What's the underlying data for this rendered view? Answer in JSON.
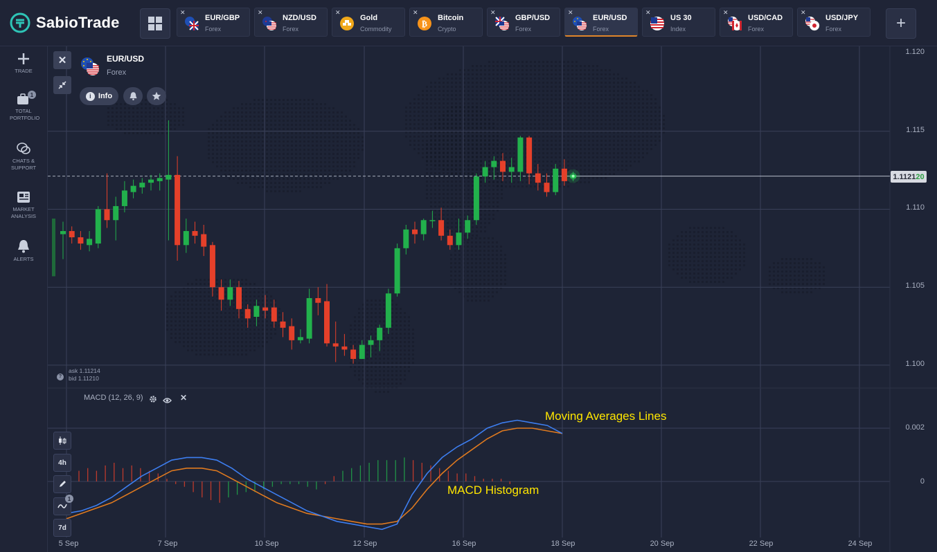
{
  "app": {
    "brand": "SabioTrade",
    "accent": "#2ec4b6"
  },
  "tabs": [
    {
      "name": "EUR/GBP",
      "category": "Forex",
      "flag": "eu-uk-flag-icon"
    },
    {
      "name": "NZD/USD",
      "category": "Forex",
      "flag": "nz-us-flag-icon"
    },
    {
      "name": "Gold",
      "category": "Commodity",
      "flag": "gold-icon"
    },
    {
      "name": "Bitcoin",
      "category": "Crypto",
      "flag": "bitcoin-icon"
    },
    {
      "name": "GBP/USD",
      "category": "Forex",
      "flag": "uk-us-flag-icon"
    },
    {
      "name": "EUR/USD",
      "category": "Forex",
      "flag": "eu-us-flag-icon",
      "active": true
    },
    {
      "name": "US 30",
      "category": "Index",
      "flag": "us-flag-icon"
    },
    {
      "name": "USD/CAD",
      "category": "Forex",
      "flag": "us-ca-flag-icon"
    },
    {
      "name": "USD/JPY",
      "category": "Forex",
      "flag": "us-jp-flag-icon"
    }
  ],
  "sidebar": {
    "items": [
      {
        "label": "TRADE",
        "icon": "plus-icon"
      },
      {
        "label": "TOTAL PORTFOLIO",
        "icon": "briefcase-icon",
        "badge": "1"
      },
      {
        "label": "CHATS & SUPPORT",
        "icon": "chat-icon"
      },
      {
        "label": "MARKET ANALYSIS",
        "icon": "newspaper-icon"
      },
      {
        "label": "ALERTS",
        "icon": "bell-icon"
      }
    ]
  },
  "symbol": {
    "name": "EUR/USD",
    "category": "Forex",
    "info_label": "Info"
  },
  "quote": {
    "ask": "ask 1.11214",
    "bid": "bid 1.11210",
    "price_main": "1.1121",
    "price_tail": "20"
  },
  "indicator": {
    "label": "MACD (12, 26, 9)"
  },
  "tools": {
    "period": "4h",
    "range": "7d",
    "indicator_badge": "1"
  },
  "annotations": {
    "ma": "Moving Averages Lines",
    "hist": "MACD Histogram"
  },
  "colors": {
    "up": "#22b14c",
    "down": "#e5402a",
    "macd": "#3d7ef0",
    "signal": "#e07a1f"
  },
  "chart_data": {
    "type": "candlestick",
    "price_ticks": [
      "1.120",
      "1.115",
      "1.110",
      "1.105",
      "1.100"
    ],
    "macd_ticks": [
      "0.002",
      "0"
    ],
    "x_ticks": [
      "5 Sep",
      "7 Sep",
      "10 Sep",
      "12 Sep",
      "16 Sep",
      "18 Sep",
      "20 Sep",
      "22 Sep",
      "24 Sep"
    ],
    "current_price": 1.11212,
    "candles": [
      [
        1.1084,
        1.1086,
        1.1092,
        1.1068
      ],
      [
        1.1086,
        1.1082,
        1.1089,
        1.1078
      ],
      [
        1.1082,
        1.1078,
        1.1086,
        1.1074
      ],
      [
        1.1077,
        1.1081,
        1.1086,
        1.1073
      ],
      [
        1.1078,
        1.11,
        1.1102,
        1.1075
      ],
      [
        1.11,
        1.1093,
        1.1123,
        1.1088
      ],
      [
        1.1093,
        1.1102,
        1.1108,
        1.108
      ],
      [
        1.1102,
        1.1112,
        1.1118,
        1.1098
      ],
      [
        1.1111,
        1.1115,
        1.1119,
        1.1107
      ],
      [
        1.1114,
        1.1117,
        1.112,
        1.111
      ],
      [
        1.1117,
        1.1119,
        1.1122,
        1.1112
      ],
      [
        1.1118,
        1.112,
        1.1123,
        1.1112
      ],
      [
        1.1119,
        1.1122,
        1.1157,
        1.108
      ],
      [
        1.1122,
        1.1077,
        1.1134,
        1.1067
      ],
      [
        1.1077,
        1.1086,
        1.1094,
        1.1072
      ],
      [
        1.1086,
        1.1083,
        1.1092,
        1.1078
      ],
      [
        1.1084,
        1.1076,
        1.109,
        1.107
      ],
      [
        1.1077,
        1.105,
        1.1079,
        1.1044
      ],
      [
        1.105,
        1.1042,
        1.1055,
        1.1035
      ],
      [
        1.1042,
        1.105,
        1.1055,
        1.1038
      ],
      [
        1.105,
        1.1036,
        1.1054,
        1.103
      ],
      [
        1.1036,
        1.103,
        1.1039,
        1.1024
      ],
      [
        1.1031,
        1.1038,
        1.1042,
        1.1025
      ],
      [
        1.1037,
        1.1035,
        1.1045,
        1.103
      ],
      [
        1.1037,
        1.1028,
        1.1042,
        1.1024
      ],
      [
        1.1028,
        1.1024,
        1.1034,
        1.1018
      ],
      [
        1.1025,
        1.1016,
        1.103,
        1.101
      ],
      [
        1.1016,
        1.1018,
        1.1023,
        1.1014
      ],
      [
        1.1017,
        1.1043,
        1.1049,
        1.1014
      ],
      [
        1.1043,
        1.104,
        1.105,
        1.1032
      ],
      [
        1.1041,
        1.1014,
        1.1052,
        1.1012
      ],
      [
        1.1014,
        1.1012,
        1.1028,
        1.1002
      ],
      [
        1.1012,
        1.101,
        1.102,
        1.1006
      ],
      [
        1.101,
        1.1004,
        1.1013,
        1.1001
      ],
      [
        1.1004,
        1.1013,
        1.1016,
        1.1004
      ],
      [
        1.1013,
        1.1016,
        1.1019,
        1.1005
      ],
      [
        1.1016,
        1.1024,
        1.1026,
        1.1009
      ],
      [
        1.1024,
        1.1046,
        1.1049,
        1.102
      ],
      [
        1.1046,
        1.1075,
        1.1078,
        1.1044
      ],
      [
        1.1075,
        1.1087,
        1.109,
        1.1071
      ],
      [
        1.1087,
        1.1084,
        1.1092,
        1.1078
      ],
      [
        1.1084,
        1.1093,
        1.1094,
        1.108
      ],
      [
        1.1093,
        1.1093,
        1.1099,
        1.1088
      ],
      [
        1.1093,
        1.1083,
        1.1101,
        1.108
      ],
      [
        1.1083,
        1.1077,
        1.1087,
        1.1074
      ],
      [
        1.1077,
        1.1085,
        1.1094,
        1.1074
      ],
      [
        1.1085,
        1.1093,
        1.1096,
        1.1081
      ],
      [
        1.1093,
        1.1121,
        1.1123,
        1.109
      ],
      [
        1.1121,
        1.1127,
        1.1131,
        1.1117
      ],
      [
        1.1127,
        1.1131,
        1.1134,
        1.1119
      ],
      [
        1.1131,
        1.1124,
        1.1136,
        1.1118
      ],
      [
        1.1124,
        1.1127,
        1.1133,
        1.1117
      ],
      [
        1.1124,
        1.1146,
        1.1147,
        1.1118
      ],
      [
        1.1146,
        1.1123,
        1.1147,
        1.1116
      ],
      [
        1.1123,
        1.1117,
        1.1129,
        1.1112
      ],
      [
        1.1117,
        1.1111,
        1.1123,
        1.1108
      ],
      [
        1.1111,
        1.1126,
        1.1129,
        1.1109
      ],
      [
        1.1126,
        1.1118,
        1.1132,
        1.1115
      ],
      [
        1.112,
        1.1122,
        1.1124,
        1.1118
      ]
    ],
    "macd_line": [
      -0.0012,
      -0.0011,
      -0.0009,
      -0.0006,
      -0.0002,
      0.0002,
      0.0005,
      0.0008,
      0.0009,
      0.0009,
      0.0008,
      0.0005,
      0.0001,
      -0.0002,
      -0.0005,
      -0.0008,
      -0.0011,
      -0.0013,
      -0.0015,
      -0.0016,
      -0.0017,
      -0.0018,
      -0.0016,
      -0.0005,
      0.0003,
      0.0009,
      0.0013,
      0.0016,
      0.002,
      0.0022,
      0.0023,
      0.0022,
      0.0021,
      0.0018
    ],
    "signal_line": [
      -0.0014,
      -0.0012,
      -0.001,
      -0.0008,
      -0.0005,
      -0.0002,
      0.0001,
      0.0004,
      0.0005,
      0.0005,
      0.0004,
      0.0001,
      -0.0002,
      -0.0005,
      -0.0008,
      -0.001,
      -0.0012,
      -0.0013,
      -0.0014,
      -0.0015,
      -0.0016,
      -0.0016,
      -0.0015,
      -0.001,
      -0.0003,
      0.0003,
      0.0008,
      0.0012,
      0.0016,
      0.0019,
      0.002,
      0.002,
      0.0019,
      0.0018
    ],
    "histogram": [
      0.0004,
      0.0005,
      0.0004,
      0.0006,
      0.0007,
      0.0005,
      0.0006,
      0.0005,
      0.0004,
      0.0003,
      0.0001,
      -0.0001,
      -0.0002,
      -0.0004,
      -0.0006,
      -0.0007,
      -0.0008,
      -0.0006,
      -0.0005,
      -0.0004,
      -0.0004,
      -0.0003,
      -0.0002,
      -0.0001,
      -0.0001,
      -0.0001,
      -0.0002,
      -0.0003,
      -0.0001,
      0.0002,
      0.0004,
      0.0005,
      0.0006,
      0.0007,
      0.0008,
      0.0008,
      0.0008,
      0.0009,
      0.0008,
      0.0007,
      0.0006,
      0.0005,
      0.0004,
      0.0003,
      0.0003,
      0.0002,
      0.0001,
      0.0001,
      0.0001,
      -0.0001
    ]
  }
}
